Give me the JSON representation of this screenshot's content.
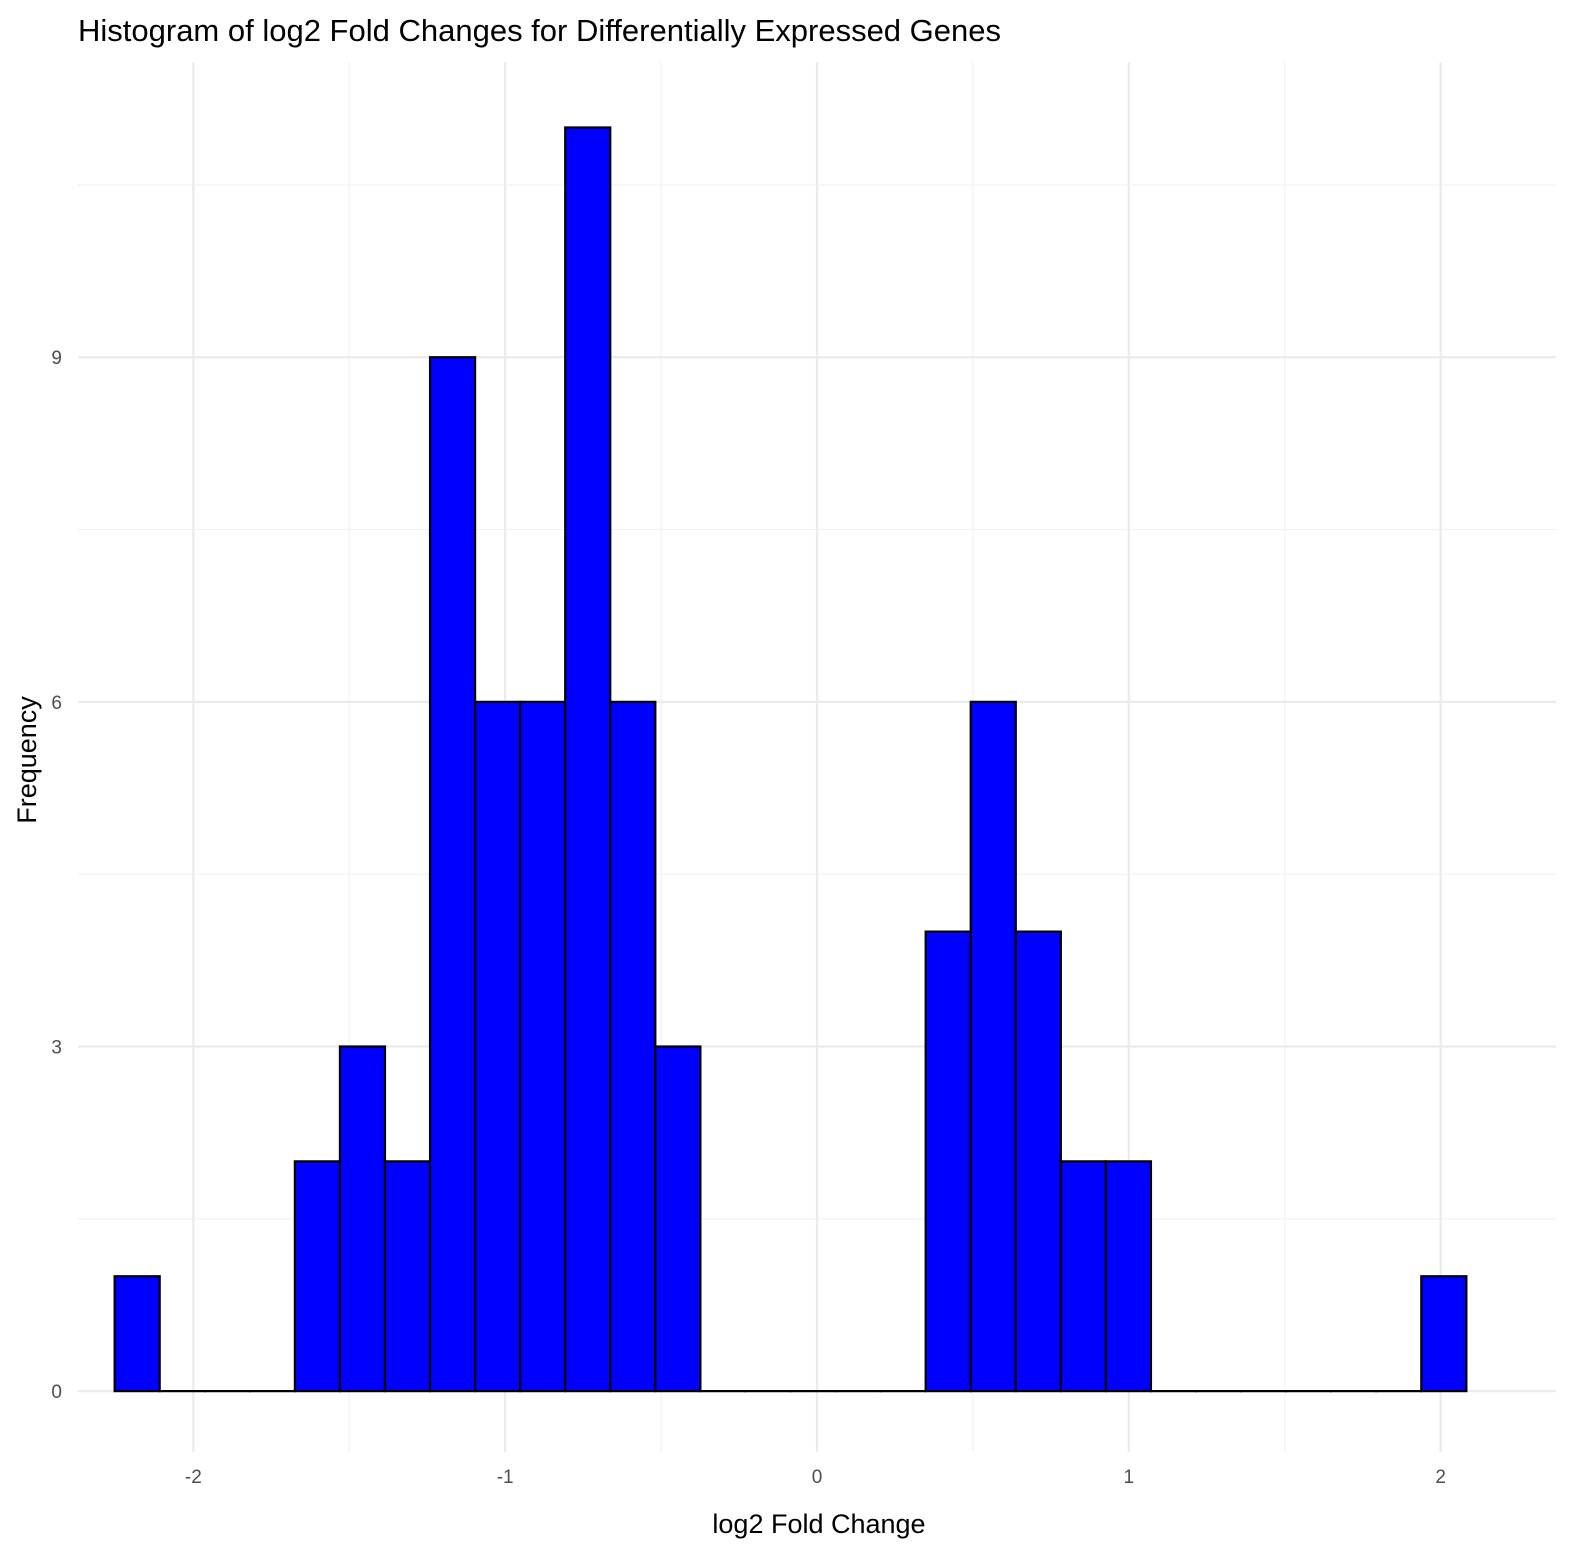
{
  "chart_data": {
    "type": "bar",
    "title": "Histogram of log2 Fold Changes for Differentially Expressed Genes",
    "xlabel": "log2 Fold Change",
    "ylabel": "Frequency",
    "xlim": [
      -2.37,
      2.37
    ],
    "ylim": [
      -0.53,
      11.57
    ],
    "x_ticks": [
      -2,
      -1,
      0,
      1,
      2
    ],
    "x_tick_labels": [
      "-2",
      "-1",
      "0",
      "1",
      "2"
    ],
    "y_ticks": [
      0,
      3,
      6,
      9
    ],
    "y_tick_labels": [
      "0",
      "3",
      "6",
      "9"
    ],
    "bin_width": 0.1445,
    "bins": [
      {
        "xmin": -2.2525,
        "xmax": -2.108,
        "count": 1
      },
      {
        "xmin": -2.108,
        "xmax": -1.9635,
        "count": 0
      },
      {
        "xmin": -1.9635,
        "xmax": -1.819,
        "count": 0
      },
      {
        "xmin": -1.819,
        "xmax": -1.6745,
        "count": 0
      },
      {
        "xmin": -1.6745,
        "xmax": -1.53,
        "count": 2
      },
      {
        "xmin": -1.53,
        "xmax": -1.3855,
        "count": 3
      },
      {
        "xmin": -1.3855,
        "xmax": -1.241,
        "count": 2
      },
      {
        "xmin": -1.241,
        "xmax": -1.0965,
        "count": 9
      },
      {
        "xmin": -1.0965,
        "xmax": -0.952,
        "count": 6
      },
      {
        "xmin": -0.952,
        "xmax": -0.8075,
        "count": 6
      },
      {
        "xmin": -0.8075,
        "xmax": -0.663,
        "count": 11
      },
      {
        "xmin": -0.663,
        "xmax": -0.5185,
        "count": 6
      },
      {
        "xmin": -0.5185,
        "xmax": -0.374,
        "count": 3
      },
      {
        "xmin": -0.374,
        "xmax": -0.2295,
        "count": 0
      },
      {
        "xmin": -0.2295,
        "xmax": -0.085,
        "count": 0
      },
      {
        "xmin": -0.085,
        "xmax": 0.0595,
        "count": 0
      },
      {
        "xmin": 0.0595,
        "xmax": 0.204,
        "count": 0
      },
      {
        "xmin": 0.204,
        "xmax": 0.3485,
        "count": 0
      },
      {
        "xmin": 0.3485,
        "xmax": 0.493,
        "count": 4
      },
      {
        "xmin": 0.493,
        "xmax": 0.6375,
        "count": 6
      },
      {
        "xmin": 0.6375,
        "xmax": 0.782,
        "count": 4
      },
      {
        "xmin": 0.782,
        "xmax": 0.9265,
        "count": 2
      },
      {
        "xmin": 0.9265,
        "xmax": 1.071,
        "count": 2
      },
      {
        "xmin": 1.071,
        "xmax": 1.2155,
        "count": 0
      },
      {
        "xmin": 1.2155,
        "xmax": 1.36,
        "count": 0
      },
      {
        "xmin": 1.36,
        "xmax": 1.5045,
        "count": 0
      },
      {
        "xmin": 1.5045,
        "xmax": 1.649,
        "count": 0
      },
      {
        "xmin": 1.649,
        "xmax": 1.7935,
        "count": 0
      },
      {
        "xmin": 1.7935,
        "xmax": 1.938,
        "count": 0
      },
      {
        "xmin": 1.938,
        "xmax": 2.0825,
        "count": 1
      }
    ],
    "grid": true,
    "legend": "none",
    "colors": {
      "bar_fill": "#0000ff",
      "bar_outline": "#000000",
      "background": "#ffffff",
      "grid": "#ebebeb"
    }
  }
}
